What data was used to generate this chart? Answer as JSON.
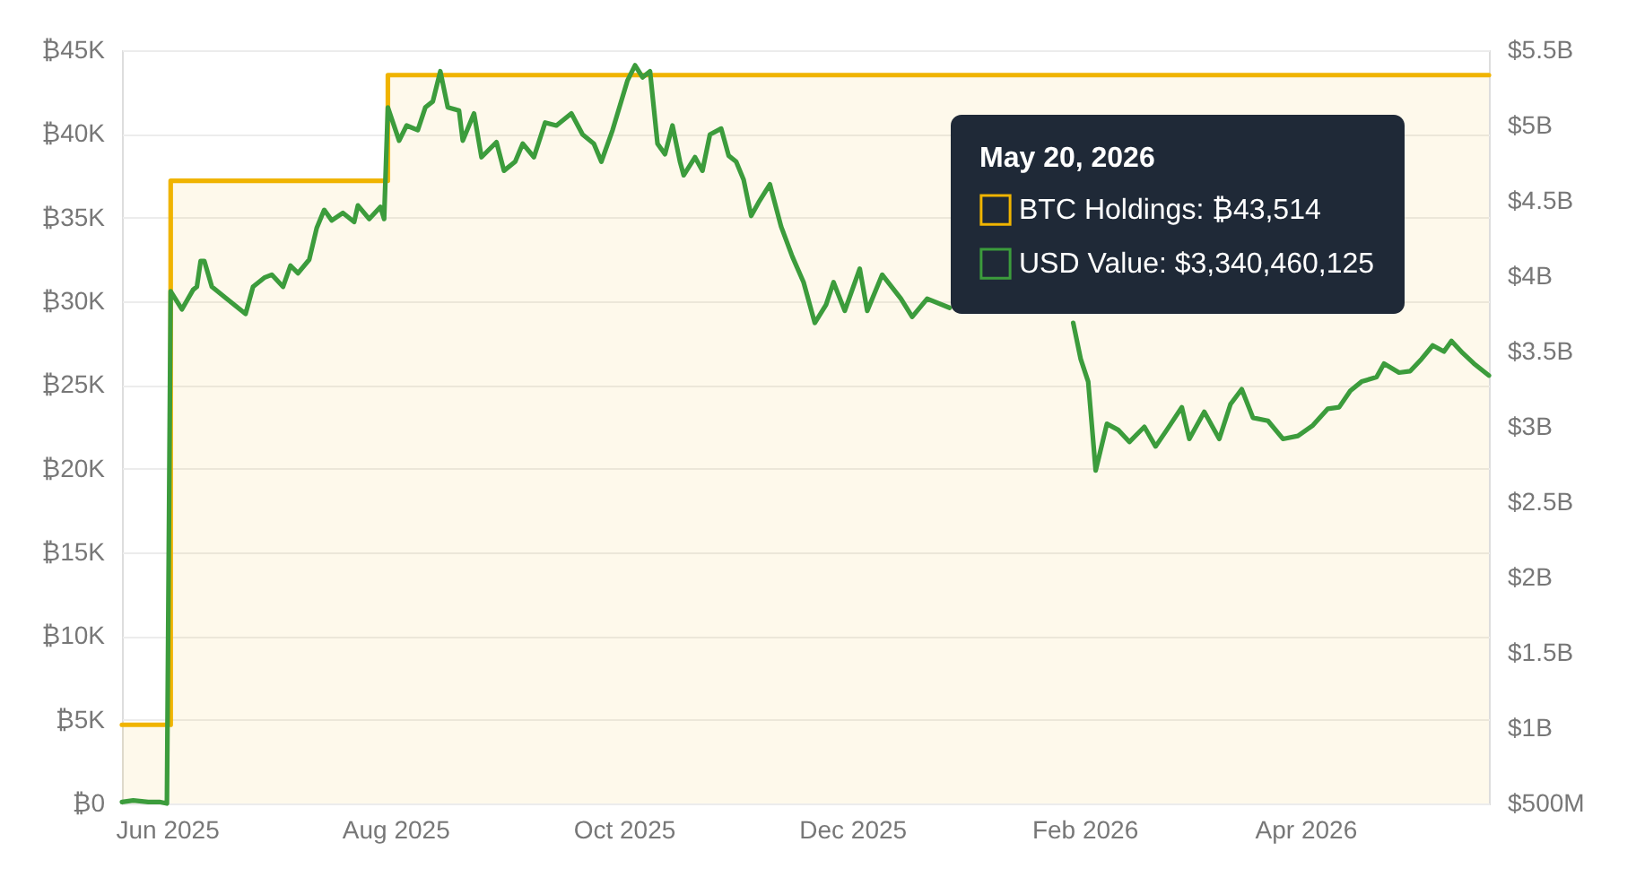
{
  "chart_data": {
    "type": "line",
    "legend_title": "May 20, 2026",
    "legend": "top right",
    "grid": "y",
    "xlim": [
      "2025-05-20",
      "2026-05-20"
    ],
    "xticks": [
      {
        "value": "2025-06-01",
        "label": "Jun 2025"
      },
      {
        "value": "2025-08-01",
        "label": "Aug 2025"
      },
      {
        "value": "2025-10-01",
        "label": "Oct 2025"
      },
      {
        "value": "2025-12-01",
        "label": "Dec 2025"
      },
      {
        "value": "2026-02-01",
        "label": "Feb 2026"
      },
      {
        "value": "2026-04-01",
        "label": "Apr 2026"
      }
    ],
    "ylim": [
      0,
      45000
    ],
    "yticks": [
      {
        "value": 0,
        "label": "₿0"
      },
      {
        "value": 5000,
        "label": "₿5K"
      },
      {
        "value": 10000,
        "label": "₿10K"
      },
      {
        "value": 15000,
        "label": "₿15K"
      },
      {
        "value": 20000,
        "label": "₿20K"
      },
      {
        "value": 25000,
        "label": "₿25K"
      },
      {
        "value": 30000,
        "label": "₿30K"
      },
      {
        "value": 35000,
        "label": "₿35K"
      },
      {
        "value": 40000,
        "label": "₿40K"
      },
      {
        "value": 45000,
        "label": "₿45K"
      }
    ],
    "y2lim": [
      500000000,
      5500000000
    ],
    "y2ticks": [
      {
        "value": 500000000,
        "label": "$500M"
      },
      {
        "value": 1000000000,
        "label": "$1B"
      },
      {
        "value": 1500000000,
        "label": "$1.5B"
      },
      {
        "value": 2000000000,
        "label": "$2B"
      },
      {
        "value": 2500000000,
        "label": "$2.5B"
      },
      {
        "value": 3000000000,
        "label": "$3B"
      },
      {
        "value": 3500000000,
        "label": "$3.5B"
      },
      {
        "value": 4000000000,
        "label": "$4B"
      },
      {
        "value": 4500000000,
        "label": "$4.5B"
      },
      {
        "value": 5000000000,
        "label": "$5B"
      },
      {
        "value": 5500000000,
        "label": "$5.5B"
      }
    ],
    "series": [
      {
        "name": "BTC Holdings: ₿43,514",
        "type": "step",
        "color": "#f0b400",
        "x": [
          "2025-05-20",
          "2025-06-02",
          "2025-07-30",
          "2026-05-20"
        ],
        "values": [
          4700,
          37200,
          43514,
          43514
        ]
      },
      {
        "name": "USD Value: $3,340,460,125",
        "axis": "y2",
        "color": "#3c9c3c",
        "x": [
          "2025-05-20",
          "2025-05-23",
          "2025-05-27",
          "2025-05-30",
          "2025-06-01",
          "2025-06-02",
          "2025-06-05",
          "2025-06-08",
          "2025-06-09",
          "2025-06-10",
          "2025-06-11",
          "2025-06-13",
          "2025-06-15",
          "2025-06-17",
          "2025-06-22",
          "2025-06-24",
          "2025-06-27",
          "2025-06-29",
          "2025-07-02",
          "2025-07-04",
          "2025-07-06",
          "2025-07-09",
          "2025-07-11",
          "2025-07-13",
          "2025-07-15",
          "2025-07-18",
          "2025-07-21",
          "2025-07-22",
          "2025-07-25",
          "2025-07-28",
          "2025-07-29",
          "2025-07-30",
          "2025-08-02",
          "2025-08-04",
          "2025-08-07",
          "2025-08-09",
          "2025-08-11",
          "2025-08-13",
          "2025-08-15",
          "2025-08-18",
          "2025-08-19",
          "2025-08-22",
          "2025-08-24",
          "2025-08-28",
          "2025-08-30",
          "2025-09-02",
          "2025-09-04",
          "2025-09-07",
          "2025-09-10",
          "2025-09-13",
          "2025-09-17",
          "2025-09-20",
          "2025-09-23",
          "2025-09-25",
          "2025-09-28",
          "2025-10-02",
          "2025-10-04",
          "2025-10-06",
          "2025-10-08",
          "2025-10-10",
          "2025-10-12",
          "2025-10-14",
          "2025-10-16",
          "2025-10-17",
          "2025-10-20",
          "2025-10-22",
          "2025-10-24",
          "2025-10-27",
          "2025-10-29",
          "2025-10-31",
          "2025-11-02",
          "2025-11-04",
          "2025-11-06",
          "2025-11-09",
          "2025-11-12",
          "2025-11-15",
          "2025-11-18",
          "2025-11-21",
          "2025-11-24",
          "2025-11-26",
          "2025-11-29",
          "2025-12-03",
          "2025-12-05",
          "2025-12-09",
          "2025-12-14",
          "2025-12-17",
          "2025-12-21",
          "2025-12-27",
          "2026-01-10",
          "2026-01-29",
          "2026-01-31",
          "2026-02-02",
          "2026-02-04",
          "2026-02-07",
          "2026-02-10",
          "2026-02-13",
          "2026-02-17",
          "2026-02-20",
          "2026-02-23",
          "2026-02-27",
          "2026-03-01",
          "2026-03-05",
          "2026-03-09",
          "2026-03-12",
          "2026-03-15",
          "2026-03-18",
          "2026-03-22",
          "2026-03-26",
          "2026-03-30",
          "2026-04-03",
          "2026-04-07",
          "2026-04-10",
          "2026-04-13",
          "2026-04-16",
          "2026-04-20",
          "2026-04-22",
          "2026-04-26",
          "2026-04-29",
          "2026-05-02",
          "2026-05-05",
          "2026-05-08",
          "2026-05-10",
          "2026-05-13",
          "2026-05-16",
          "2026-05-20"
        ],
        "values": [
          510000000,
          520000000,
          510000000,
          510000000,
          500000000,
          3900000000,
          3780000000,
          3910000000,
          3930000000,
          4100000000,
          4100000000,
          3930000000,
          3890000000,
          3850000000,
          3750000000,
          3930000000,
          3990000000,
          4010000000,
          3930000000,
          4070000000,
          4020000000,
          4110000000,
          4320000000,
          4440000000,
          4370000000,
          4420000000,
          4360000000,
          4470000000,
          4380000000,
          4460000000,
          4380000000,
          5120000000,
          4900000000,
          5000000000,
          4970000000,
          5120000000,
          5160000000,
          5360000000,
          5120000000,
          5100000000,
          4900000000,
          5080000000,
          4790000000,
          4890000000,
          4700000000,
          4760000000,
          4880000000,
          4790000000,
          5020000000,
          5000000000,
          5080000000,
          4940000000,
          4880000000,
          4760000000,
          4970000000,
          5300000000,
          5400000000,
          5320000000,
          5360000000,
          4880000000,
          4810000000,
          5000000000,
          4760000000,
          4670000000,
          4790000000,
          4700000000,
          4940000000,
          4980000000,
          4800000000,
          4760000000,
          4640000000,
          4400000000,
          4490000000,
          4610000000,
          4330000000,
          4130000000,
          3960000000,
          3690000000,
          3810000000,
          3960000000,
          3770000000,
          4050000000,
          3770000000,
          4010000000,
          3850000000,
          3730000000,
          3850000000,
          3790000000,
          null,
          3690000000,
          3450000000,
          3300000000,
          2710000000,
          3020000000,
          2980000000,
          2900000000,
          3000000000,
          2870000000,
          2980000000,
          3130000000,
          2920000000,
          3100000000,
          2920000000,
          3150000000,
          3250000000,
          3060000000,
          3040000000,
          2920000000,
          2940000000,
          3010000000,
          3120000000,
          3130000000,
          3240000000,
          3300000000,
          3330000000,
          3420000000,
          3360000000,
          3370000000,
          3450000000,
          3540000000,
          3500000000,
          3570000000,
          3490000000,
          3420000000,
          3340460125
        ]
      }
    ]
  }
}
